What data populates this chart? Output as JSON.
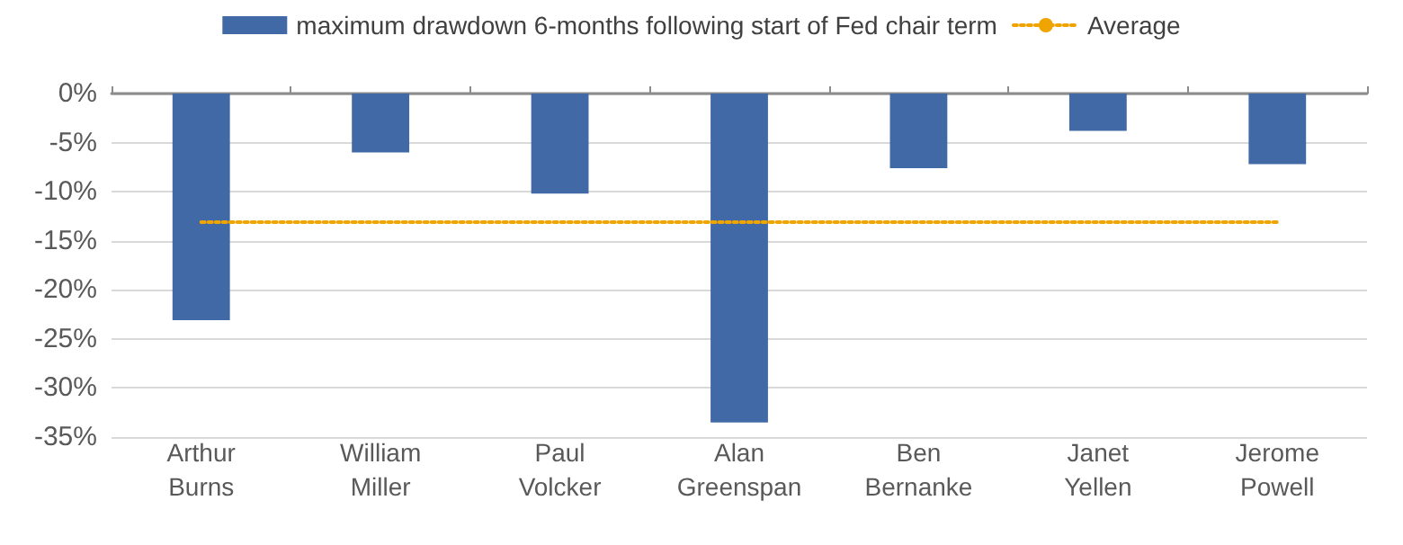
{
  "chart_data": {
    "type": "bar",
    "categories": [
      "Arthur\nBurns",
      "William\nMiller",
      "Paul\nVolcker",
      "Alan\nGreenspan",
      "Ben\nBernanke",
      "Janet\nYellen",
      "Jerome\nPowell"
    ],
    "series": [
      {
        "name": "maximum drawdown 6-months following start of Fed chair term",
        "color": "#4169a5",
        "values": [
          -23.1,
          -6.0,
          -10.2,
          -33.5,
          -7.6,
          -3.8,
          -7.2
        ]
      },
      {
        "name": "Average",
        "type": "line",
        "color": "#f0a400",
        "line_style": "dotted",
        "marker": "none",
        "values": [
          -13.1,
          -13.1,
          -13.1,
          -13.1,
          -13.1,
          -13.1,
          -13.1
        ]
      }
    ],
    "ylim": [
      -35,
      0
    ],
    "yticks": [
      {
        "value": -35,
        "label": "-35%"
      },
      {
        "value": -30,
        "label": "-30%"
      },
      {
        "value": -25,
        "label": "-25%"
      },
      {
        "value": -20,
        "label": "-20%"
      },
      {
        "value": -15,
        "label": "-15%"
      },
      {
        "value": -10,
        "label": "-10%"
      },
      {
        "value": -5,
        "label": "-5%"
      },
      {
        "value": 0,
        "label": "0%"
      }
    ],
    "grid": "y",
    "legend": "top"
  }
}
